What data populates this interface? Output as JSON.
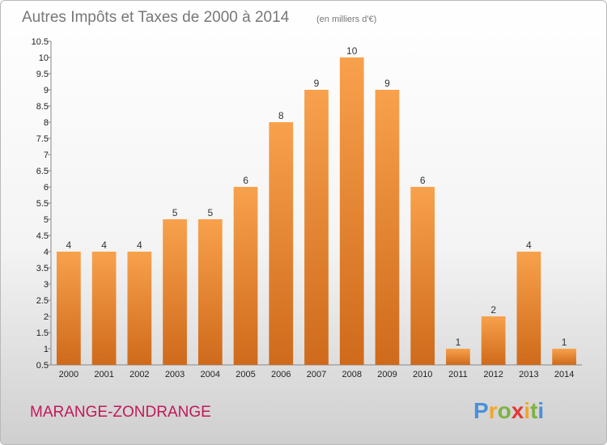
{
  "header": {
    "title": "Autres Impôts et Taxes de 2000 à 2014",
    "unit": "(en milliers d'€)"
  },
  "footer": {
    "place": "MARANGE-ZONDRANGE",
    "logo": {
      "letters": [
        "P",
        "r",
        "o",
        "x",
        "i",
        "t",
        "i"
      ],
      "colors": [
        "#4a90d9",
        "#f5a623",
        "#7cb342",
        "#e53935",
        "#f5a623",
        "#7cb342",
        "#4a90d9"
      ]
    }
  },
  "chart_data": {
    "type": "bar",
    "title": "Autres Impôts et Taxes de 2000 à 2014",
    "subtitle": "(en milliers d'€)",
    "categories": [
      "2000",
      "2001",
      "2002",
      "2003",
      "2004",
      "2005",
      "2006",
      "2007",
      "2008",
      "2009",
      "2010",
      "2011",
      "2012",
      "2013",
      "2014"
    ],
    "values": [
      4,
      4,
      4,
      5,
      5,
      6,
      8,
      9,
      10,
      9,
      6,
      1,
      2,
      4,
      1
    ],
    "value_labels": [
      "4",
      "4",
      "4",
      "5",
      "5",
      "6",
      "8",
      "9",
      "10",
      "9",
      "6",
      "1",
      "2",
      "4",
      "1"
    ],
    "ylim": [
      0.5,
      10.5
    ],
    "y_ticks": [
      0.5,
      1,
      1.5,
      2,
      2.5,
      3,
      3.5,
      4,
      4.5,
      5,
      5.5,
      6,
      6.5,
      7,
      7.5,
      8,
      8.5,
      9,
      9.5,
      10,
      10.5
    ],
    "y_tick_labels": [
      "0.5",
      "1",
      "1.5",
      "2",
      "2.5",
      "3",
      "3.5",
      "4",
      "4.5",
      "5",
      "5.5",
      "6",
      "6.5",
      "7",
      "7.5",
      "8",
      "8.5",
      "9",
      "9.5",
      "10",
      "10.5"
    ],
    "grid": false,
    "colors": {
      "bar_light": "#f8a14c",
      "bar_dark": "#cf6a1b",
      "axis": "#888888"
    }
  }
}
